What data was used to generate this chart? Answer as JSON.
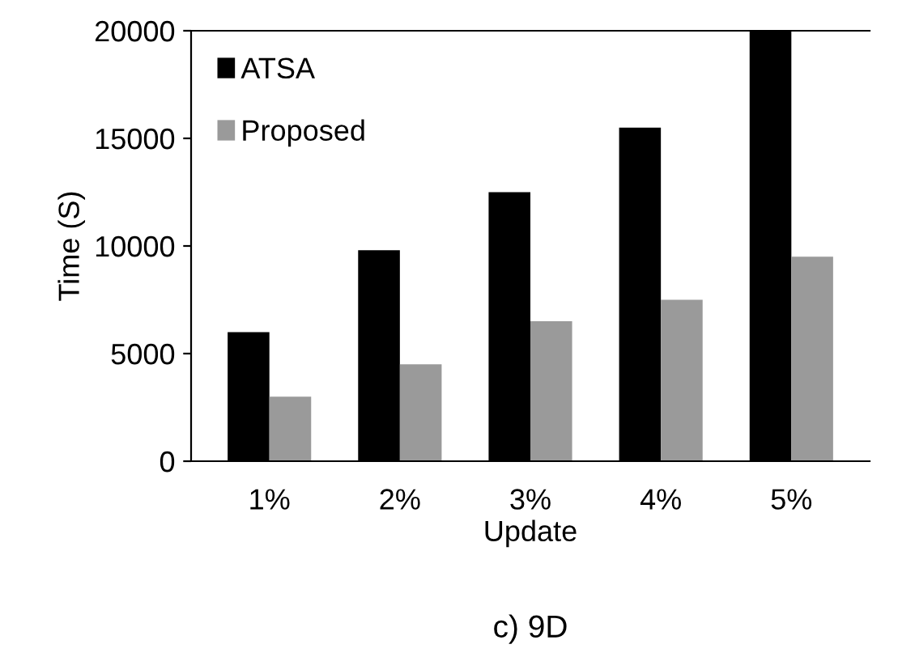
{
  "chart_data": {
    "type": "bar",
    "title": "c) 9D",
    "xlabel": "Update",
    "ylabel": "Time (S)",
    "categories": [
      "1%",
      "2%",
      "3%",
      "4%",
      "5%"
    ],
    "series": [
      {
        "name": "ATSA",
        "color": "#000000",
        "values": [
          6000,
          9800,
          12500,
          15500,
          20000
        ]
      },
      {
        "name": "Proposed",
        "color": "#9a9a9a",
        "values": [
          3000,
          4500,
          6500,
          7500,
          9500
        ]
      }
    ],
    "ylim": [
      0,
      20000
    ],
    "yticks": [
      0,
      5000,
      10000,
      15000,
      20000
    ],
    "grid": false,
    "legend": "top left"
  }
}
